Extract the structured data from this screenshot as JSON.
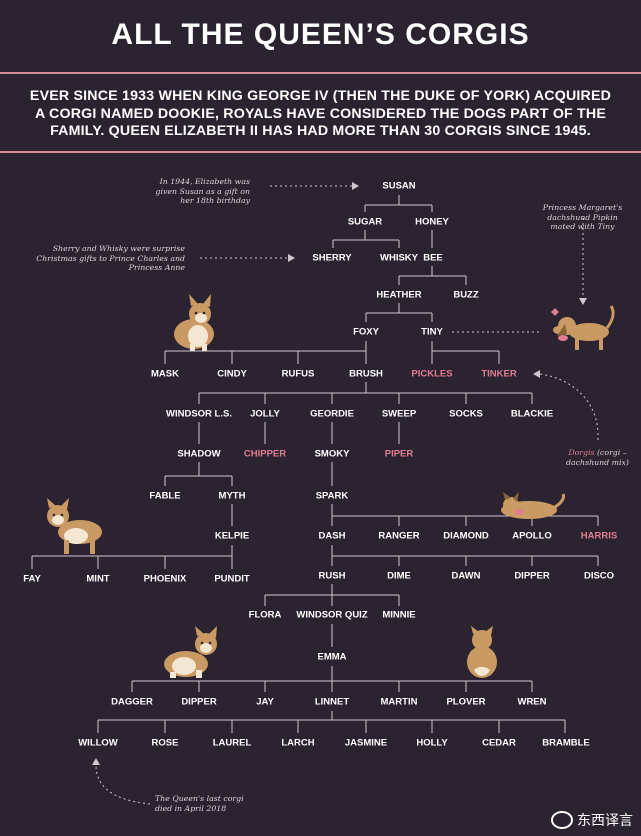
{
  "title": "ALL THE QUEEN’S CORGIS",
  "intro": "EVER SINCE 1933 WHEN KING GEORGE IV (THEN THE DUKE OF YORK) ACQUIRED A CORGI NAMED DOOKIE, ROYALS HAVE CONSIDERED THE DOGS PART OF THE FAMILY. QUEEN ELIZABETH II HAS HAD MORE THAN 30 CORGIS SINCE 1945.",
  "notes": {
    "susan": "In 1944, Elizabeth was given Susan as a gift on her 18th birthday",
    "sherry_whisky": "Sherry and Whisky were surprise Christmas gifts to Prince Charles and Princess Anne",
    "pipkin": "Princess Margaret's dachshund Pipkin mated with Tiny",
    "dorgis_term": "Dorgis",
    "dorgis_rest": " (corgi – dachshund mix)",
    "willow": "The Queen's last corgi died in April 2018"
  },
  "names": {
    "susan": "SUSAN",
    "sugar": "SUGAR",
    "honey": "HONEY",
    "sherry": "SHERRY",
    "whisky": "WHISKY",
    "bee": "BEE",
    "heather": "HEATHER",
    "buzz": "BUZZ",
    "foxy": "FOXY",
    "tiny": "TINY",
    "mask": "MASK",
    "cindy": "CINDY",
    "rufus": "RUFUS",
    "brush": "BRUSH",
    "pickles": "PICKLES",
    "tinker": "TINKER",
    "windsor_ls": "WINDSOR L.S.",
    "jolly": "JOLLY",
    "geordie": "GEORDIE",
    "sweep": "SWEEP",
    "socks": "SOCKS",
    "blackie": "BLACKIE",
    "shadow": "SHADOW",
    "chipper": "CHIPPER",
    "smoky": "SMOKY",
    "piper": "PIPER",
    "fable": "FABLE",
    "myth": "MYTH",
    "spark": "SPARK",
    "kelpie": "KELPIE",
    "dash": "DASH",
    "ranger": "RANGER",
    "diamond": "DIAMOND",
    "apollo": "APOLLO",
    "harris": "HARRIS",
    "fay": "FAY",
    "mint": "MINT",
    "phoenix": "PHOENIX",
    "pundit": "PUNDIT",
    "rush": "RUSH",
    "dime": "DIME",
    "dawn": "DAWN",
    "dipper1": "DIPPER",
    "disco": "DISCO",
    "flora": "FLORA",
    "windsor_quiz": "WINDSOR QUIZ",
    "minnie": "MINNIE",
    "emma": "EMMA",
    "dagger": "DAGGER",
    "dipper2": "DIPPER",
    "jay": "JAY",
    "linnet": "LINNET",
    "martin": "MARTIN",
    "plover": "PLOVER",
    "wren": "WREN",
    "willow": "WILLOW",
    "rose": "ROSE",
    "laurel": "LAUREL",
    "larch": "LARCH",
    "jasmine": "JASMINE",
    "holly": "HOLLY",
    "cedar": "CEDAR",
    "bramble": "BRAMBLE"
  },
  "watermark": "东西译言",
  "colors": {
    "background": "#2b2330",
    "accent": "#e07d92",
    "rule": "#d58a97",
    "line": "#cfc8d0",
    "corgi": "#c99a63"
  }
}
